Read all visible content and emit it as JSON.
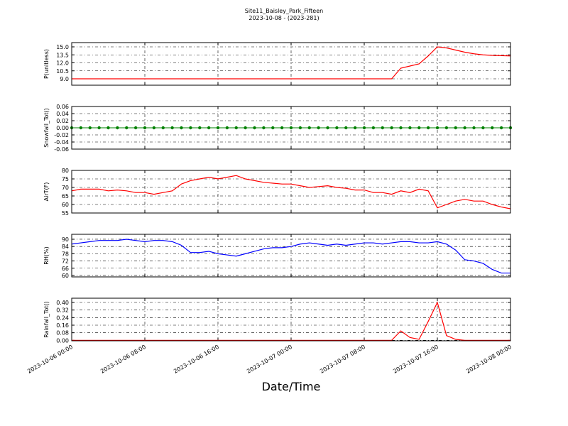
{
  "chart_data": {
    "type": "line",
    "title": "Site11_Baisley_Park_Fifteen",
    "subtitle": "2023-10-08 - (2023-281)",
    "xlabel": "Date/Time",
    "xlim": [
      "2023-10-06 00:00",
      "2023-10-08 00:00"
    ],
    "xticks": [
      "2023-10-06 00:00",
      "2023-10-06 08:00",
      "2023-10-06 16:00",
      "2023-10-07 00:00",
      "2023-10-07 08:00",
      "2023-10-07 16:00",
      "2023-10-08 00:00"
    ],
    "grid": true,
    "x": [
      "2023-10-06 00:00",
      "2023-10-06 01:00",
      "2023-10-06 02:00",
      "2023-10-06 03:00",
      "2023-10-06 04:00",
      "2023-10-06 05:00",
      "2023-10-06 06:00",
      "2023-10-06 07:00",
      "2023-10-06 08:00",
      "2023-10-06 09:00",
      "2023-10-06 10:00",
      "2023-10-06 11:00",
      "2023-10-06 12:00",
      "2023-10-06 13:00",
      "2023-10-06 14:00",
      "2023-10-06 15:00",
      "2023-10-06 16:00",
      "2023-10-06 17:00",
      "2023-10-06 18:00",
      "2023-10-06 19:00",
      "2023-10-06 20:00",
      "2023-10-06 21:00",
      "2023-10-06 22:00",
      "2023-10-06 23:00",
      "2023-10-07 00:00",
      "2023-10-07 01:00",
      "2023-10-07 02:00",
      "2023-10-07 03:00",
      "2023-10-07 04:00",
      "2023-10-07 05:00",
      "2023-10-07 06:00",
      "2023-10-07 07:00",
      "2023-10-07 08:00",
      "2023-10-07 09:00",
      "2023-10-07 10:00",
      "2023-10-07 11:00",
      "2023-10-07 12:00",
      "2023-10-07 13:00",
      "2023-10-07 14:00",
      "2023-10-07 15:00",
      "2023-10-07 16:00",
      "2023-10-07 17:00",
      "2023-10-07 18:00",
      "2023-10-07 19:00",
      "2023-10-07 20:00",
      "2023-10-07 21:00",
      "2023-10-07 22:00",
      "2023-10-07 23:00",
      "2023-10-08 00:00"
    ],
    "panels": [
      {
        "ylabel": "P(unitless)",
        "ylim": [
          7.8,
          15.8
        ],
        "yticks": [
          {
            "value": 9,
            "label": "9.0"
          },
          10.5,
          {
            "value": 12,
            "label": "12.0"
          },
          13.5,
          {
            "value": 15,
            "label": "15.0"
          }
        ],
        "series": [
          {
            "color": "#ff0000",
            "markers": false,
            "values": [
              9,
              9,
              9,
              9,
              9,
              9,
              9,
              9,
              9,
              9,
              9,
              9,
              9,
              9,
              9,
              9,
              9,
              9,
              9,
              9,
              9,
              9,
              9,
              9,
              9,
              9,
              9,
              9,
              9,
              9,
              9,
              9,
              9,
              9,
              9,
              9,
              11,
              11.4,
              11.8,
              13.3,
              15,
              14.8,
              14.4,
              14,
              13.7,
              13.5,
              13.4,
              13.35,
              13.3
            ]
          }
        ]
      },
      {
        "ylabel": "Snowfall_Tot()",
        "ylim": [
          -0.06,
          0.06
        ],
        "yticks": [
          -0.06,
          -0.04,
          -0.02,
          {
            "value": 0,
            "label": "0.00"
          },
          0.02,
          0.04,
          0.06
        ],
        "series": [
          {
            "color": "#008000",
            "markers": true,
            "values": [
              0,
              0,
              0,
              0,
              0,
              0,
              0,
              0,
              0,
              0,
              0,
              0,
              0,
              0,
              0,
              0,
              0,
              0,
              0,
              0,
              0,
              0,
              0,
              0,
              0,
              0,
              0,
              0,
              0,
              0,
              0,
              0,
              0,
              0,
              0,
              0,
              0,
              0,
              0,
              0,
              0,
              0,
              0,
              0,
              0,
              0,
              0,
              0,
              0
            ]
          }
        ]
      },
      {
        "ylabel": "AirT(F)",
        "ylim": [
          55,
          80
        ],
        "yticks": [
          55,
          60,
          65,
          70,
          75,
          80
        ],
        "series": [
          {
            "color": "#ff0000",
            "markers": false,
            "values": [
              68,
              69,
              69,
              69,
              68,
              68.5,
              68,
              67,
              67,
              66,
              67,
              68,
              72,
              74,
              75,
              76,
              75,
              76,
              77,
              75,
              74,
              73,
              72.5,
              72,
              72,
              71,
              70,
              70.5,
              71,
              70,
              69.5,
              68.5,
              68.5,
              67,
              67,
              66,
              68,
              67,
              69,
              68,
              58,
              60,
              62,
              63,
              62,
              62,
              60,
              58.5,
              57.5
            ]
          }
        ]
      },
      {
        "ylabel": "RH(%)",
        "ylim": [
          58.8,
          94.1
        ],
        "yticks": [
          60,
          66,
          72,
          78,
          84,
          90
        ],
        "series": [
          {
            "color": "#0000ff",
            "markers": false,
            "values": [
              86,
              87,
              88,
              89,
              89,
              89,
              90,
              89,
              88,
              89,
              89,
              88,
              85,
              79,
              79,
              80,
              78,
              77,
              76,
              78,
              80,
              82,
              83,
              83,
              84,
              86,
              87,
              86,
              85,
              86,
              85,
              86,
              87,
              87,
              86,
              87,
              88,
              88,
              87,
              87,
              88,
              86,
              81,
              73,
              72,
              70,
              65,
              62,
              62
            ]
          }
        ]
      },
      {
        "ylabel": "Rainfall_Tot()",
        "ylim": [
          -0.005,
          0.445
        ],
        "yticks": [
          {
            "value": 0,
            "label": "0.00"
          },
          0.08,
          0.16,
          0.24,
          0.32,
          {
            "value": 0.4,
            "label": "0.40"
          }
        ],
        "series": [
          {
            "color": "#ff0000",
            "markers": false,
            "values": [
              0,
              0,
              0,
              0,
              0,
              0,
              0,
              0,
              0,
              0,
              0,
              0,
              0,
              0,
              0,
              0,
              0,
              0,
              0,
              0,
              0,
              0,
              0,
              0,
              0,
              0,
              0,
              0,
              0,
              0,
              0,
              0,
              0,
              0,
              0,
              0,
              0.1,
              0.03,
              0.01,
              0.2,
              0.4,
              0.05,
              0.01,
              0,
              0,
              0,
              0,
              0,
              0
            ]
          }
        ]
      }
    ]
  }
}
